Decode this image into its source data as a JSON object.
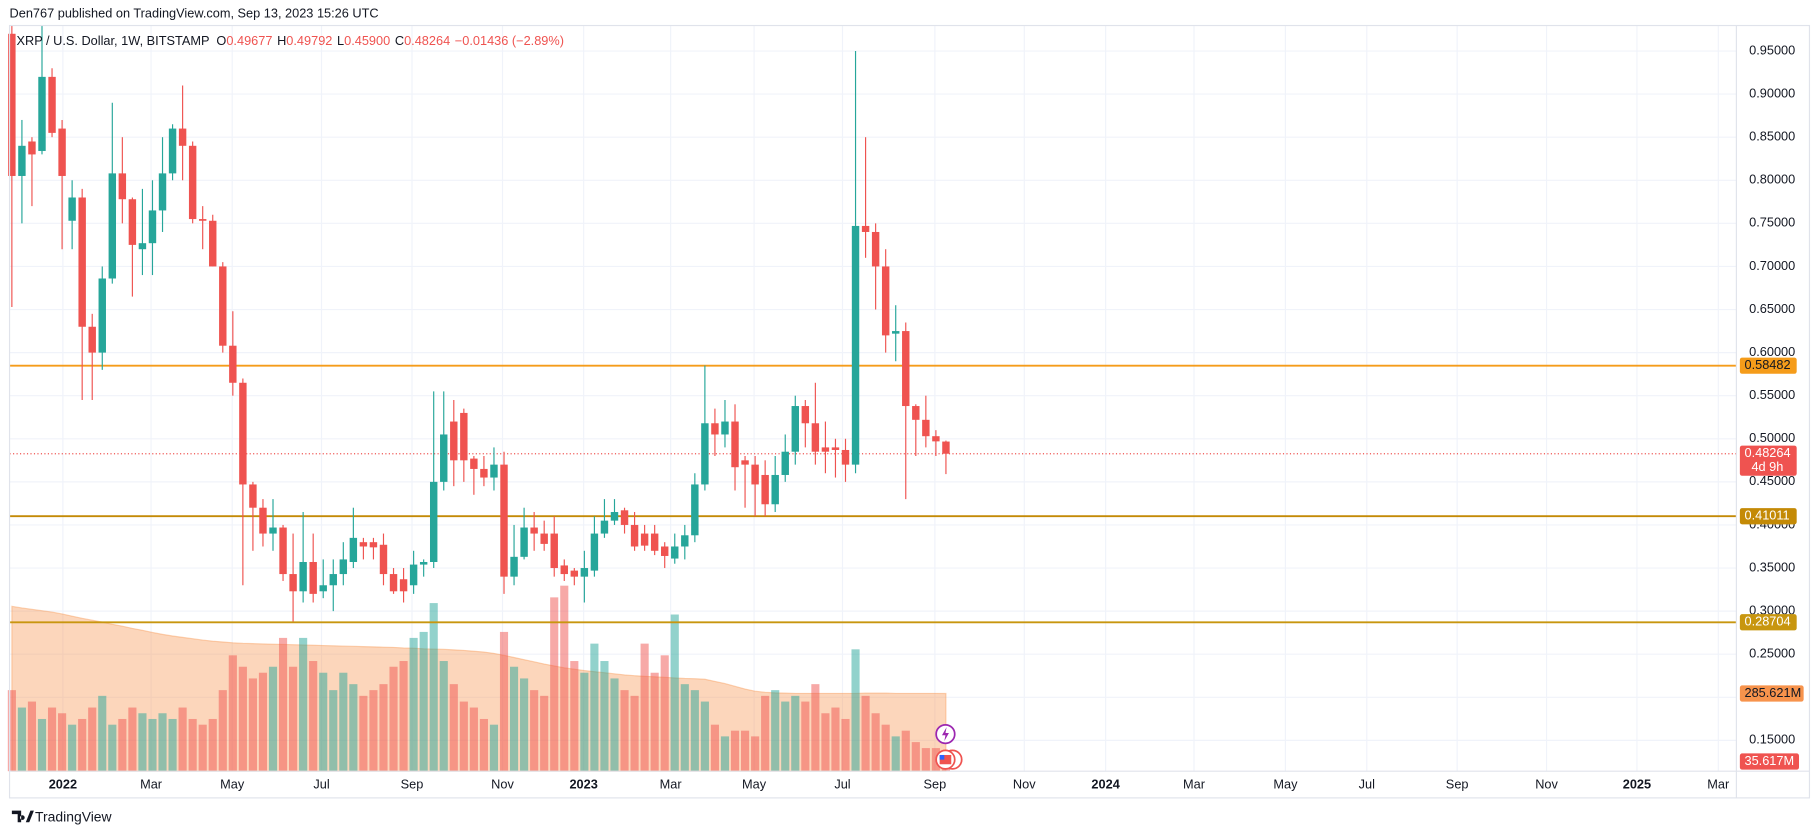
{
  "chart_data": {
    "type": "candlestick",
    "publisher_line": "Den767 published on TradingView.com, Sep 13, 2023 15:26 UTC",
    "title": "XRP / U.S. Dollar, 1W, BITSTAMP",
    "legend": [
      {
        "key": "O",
        "value": "0.49677"
      },
      {
        "key": "H",
        "value": "0.49792"
      },
      {
        "key": "L",
        "value": "0.45900"
      },
      {
        "key": "C",
        "value": "0.48264"
      }
    ],
    "change": "−0.01436 (−2.89%)",
    "brand": "TradingView",
    "up_color": "#26a69a",
    "down_color": "#ef5350",
    "volume_ma_color": "#f7934c",
    "open": [
      0.97,
      0.805,
      0.845,
      0.834,
      0.92,
      0.86,
      0.753,
      0.78,
      0.63,
      0.6,
      0.686,
      0.808,
      0.778,
      0.72,
      0.727,
      0.765,
      0.808,
      0.86,
      0.84,
      0.755,
      0.753,
      0.7,
      0.608,
      0.565,
      0.447,
      0.42,
      0.39,
      0.397,
      0.343,
      0.323,
      0.357,
      0.323,
      0.33,
      0.343,
      0.357,
      0.38,
      0.38,
      0.377,
      0.343,
      0.337,
      0.33,
      0.354,
      0.357,
      0.45,
      0.52,
      0.53,
      0.477,
      0.465,
      0.455,
      0.47,
      0.34,
      0.363,
      0.397,
      0.39,
      0.39,
      0.353,
      0.347,
      0.34,
      0.347,
      0.39,
      0.405,
      0.417,
      0.4,
      0.39,
      0.39,
      0.375,
      0.361,
      0.375,
      0.388,
      0.447,
      0.518,
      0.505,
      0.52,
      0.475,
      0.47,
      0.458,
      0.424,
      0.458,
      0.485,
      0.538,
      0.518,
      0.49,
      0.49,
      0.487,
      0.47,
      0.747,
      0.74,
      0.7,
      0.622,
      0.625,
      0.538,
      0.522,
      0.503,
      0.49677
    ],
    "high": [
      0.98,
      0.87,
      0.85,
      0.98,
      0.93,
      0.87,
      0.8,
      0.79,
      0.645,
      0.7,
      0.89,
      0.85,
      0.78,
      0.79,
      0.8,
      0.85,
      0.865,
      0.91,
      0.845,
      0.77,
      0.76,
      0.705,
      0.648,
      0.57,
      0.45,
      0.43,
      0.43,
      0.4,
      0.39,
      0.415,
      0.39,
      0.36,
      0.36,
      0.38,
      0.42,
      0.385,
      0.385,
      0.39,
      0.35,
      0.35,
      0.37,
      0.36,
      0.555,
      0.555,
      0.545,
      0.535,
      0.48,
      0.48,
      0.49,
      0.485,
      0.4,
      0.42,
      0.415,
      0.405,
      0.41,
      0.36,
      0.35,
      0.37,
      0.41,
      0.43,
      0.43,
      0.42,
      0.415,
      0.4,
      0.4,
      0.38,
      0.39,
      0.4,
      0.46,
      0.585,
      0.535,
      0.545,
      0.54,
      0.48,
      0.48,
      0.475,
      0.48,
      0.505,
      0.55,
      0.545,
      0.565,
      0.52,
      0.5,
      0.5,
      0.95,
      0.85,
      0.75,
      0.72,
      0.655,
      0.635,
      0.54,
      0.55,
      0.51,
      0.49792
    ],
    "low": [
      0.653,
      0.75,
      0.77,
      0.83,
      0.85,
      0.72,
      0.72,
      0.545,
      0.545,
      0.58,
      0.68,
      0.75,
      0.665,
      0.69,
      0.69,
      0.74,
      0.8,
      0.8,
      0.75,
      0.72,
      0.7,
      0.6,
      0.55,
      0.33,
      0.37,
      0.375,
      0.37,
      0.335,
      0.288,
      0.31,
      0.31,
      0.315,
      0.3,
      0.33,
      0.35,
      0.36,
      0.36,
      0.33,
      0.32,
      0.31,
      0.32,
      0.34,
      0.35,
      0.44,
      0.445,
      0.45,
      0.435,
      0.445,
      0.44,
      0.32,
      0.33,
      0.36,
      0.37,
      0.37,
      0.34,
      0.335,
      0.33,
      0.31,
      0.34,
      0.385,
      0.4,
      0.39,
      0.37,
      0.37,
      0.365,
      0.35,
      0.355,
      0.36,
      0.38,
      0.44,
      0.48,
      0.49,
      0.44,
      0.42,
      0.41,
      0.41,
      0.415,
      0.45,
      0.47,
      0.49,
      0.47,
      0.46,
      0.455,
      0.45,
      0.46,
      0.71,
      0.65,
      0.6,
      0.59,
      0.43,
      0.48,
      0.49,
      0.48,
      0.459
    ],
    "close": [
      0.805,
      0.84,
      0.83,
      0.92,
      0.855,
      0.805,
      0.78,
      0.63,
      0.6,
      0.686,
      0.808,
      0.778,
      0.725,
      0.727,
      0.765,
      0.808,
      0.86,
      0.84,
      0.755,
      0.753,
      0.7,
      0.608,
      0.565,
      0.447,
      0.42,
      0.39,
      0.397,
      0.343,
      0.323,
      0.357,
      0.32,
      0.33,
      0.343,
      0.36,
      0.385,
      0.375,
      0.374,
      0.343,
      0.323,
      0.323,
      0.354,
      0.357,
      0.45,
      0.505,
      0.475,
      0.475,
      0.465,
      0.455,
      0.47,
      0.34,
      0.363,
      0.397,
      0.39,
      0.378,
      0.35,
      0.343,
      0.34,
      0.35,
      0.39,
      0.405,
      0.415,
      0.4,
      0.375,
      0.376,
      0.37,
      0.364,
      0.375,
      0.388,
      0.447,
      0.518,
      0.505,
      0.52,
      0.467,
      0.47,
      0.447,
      0.424,
      0.458,
      0.485,
      0.538,
      0.518,
      0.485,
      0.485,
      0.487,
      0.47,
      0.747,
      0.74,
      0.7,
      0.62,
      0.625,
      0.538,
      0.522,
      0.503,
      0.497,
      0.48264
    ],
    "volume": [
      298,
      234,
      256,
      192,
      234,
      213,
      171,
      192,
      234,
      277,
      171,
      192,
      234,
      213,
      192,
      213,
      192,
      234,
      192,
      171,
      192,
      298,
      426,
      384,
      341,
      362,
      384,
      490,
      384,
      490,
      405,
      362,
      298,
      362,
      320,
      277,
      298,
      320,
      384,
      405,
      490,
      512,
      618,
      405,
      320,
      256,
      234,
      192,
      171,
      512,
      384,
      341,
      298,
      277,
      639,
      682,
      405,
      362,
      469,
      405,
      341,
      298,
      277,
      469,
      362,
      426,
      576,
      320,
      298,
      256,
      171,
      128,
      149,
      149,
      128,
      277,
      298,
      256,
      277,
      256,
      320,
      213,
      234,
      192,
      448,
      277,
      213,
      171,
      128,
      149,
      107,
      85,
      85,
      35.617
    ],
    "volume_ma": [
      606,
      600,
      595,
      590,
      585,
      578,
      570,
      562,
      555,
      548,
      540,
      533,
      525,
      518,
      510,
      503,
      497,
      492,
      487,
      482,
      478,
      475,
      472,
      470,
      469,
      468,
      467,
      466,
      465,
      464,
      463,
      462,
      461,
      460,
      459,
      458,
      457,
      456,
      455,
      453,
      452,
      450,
      449,
      448,
      446,
      444,
      441,
      438,
      433,
      426,
      418,
      410,
      402,
      394,
      387,
      380,
      375,
      370,
      366,
      362,
      358,
      354,
      351,
      349,
      347,
      345,
      343,
      341,
      340,
      338,
      330,
      322,
      312,
      302,
      294,
      290,
      288,
      287,
      286,
      286,
      286,
      286,
      286,
      286,
      286,
      287,
      287,
      287,
      286,
      286,
      286,
      286,
      286,
      285.621
    ],
    "volume_last_label": "35.617M",
    "volume_ma_last_label": "285.621M",
    "volume_lim": [
      0,
      2741
    ],
    "countdown": "4d 9h",
    "levels": [
      {
        "value": 0.58482,
        "color": "#f59c1a",
        "text_color": "#131722"
      },
      {
        "value": 0.41011,
        "color": "#c48a06",
        "text_color": "#ffffff"
      },
      {
        "value": 0.28704,
        "color": "#c8960f",
        "text_color": "#ffffff"
      }
    ],
    "ylim": [
      0.1142,
      0.9796
    ],
    "yticks": [
      {
        "value": 0.15,
        "label": "0.15000"
      },
      {
        "value": 0.2,
        "label": "0.20000"
      },
      {
        "value": 0.25,
        "label": "0.25000"
      },
      {
        "value": 0.3,
        "label": "0.30000"
      },
      {
        "value": 0.35,
        "label": "0.35000"
      },
      {
        "value": 0.4,
        "label": "0.40000"
      },
      {
        "value": 0.45,
        "label": "0.45000"
      },
      {
        "value": 0.5,
        "label": "0.50000"
      },
      {
        "value": 0.55,
        "label": "0.55000"
      },
      {
        "value": 0.6,
        "label": "0.60000"
      },
      {
        "value": 0.65,
        "label": "0.65000"
      },
      {
        "value": 0.7,
        "label": "0.70000"
      },
      {
        "value": 0.75,
        "label": "0.75000"
      },
      {
        "value": 0.8,
        "label": "0.80000"
      },
      {
        "value": 0.85,
        "label": "0.85000"
      },
      {
        "value": 0.9,
        "label": "0.90000"
      },
      {
        "value": 0.95,
        "label": "0.95000"
      }
    ],
    "xlim": [
      -0.23,
      171.7
    ],
    "xticks": [
      {
        "value": 5.08,
        "label": "2022"
      },
      {
        "value": 13.86,
        "label": "Mar"
      },
      {
        "value": 21.94,
        "label": "May"
      },
      {
        "value": 30.83,
        "label": "Jul"
      },
      {
        "value": 39.84,
        "label": "Sep"
      },
      {
        "value": 48.85,
        "label": "Nov"
      },
      {
        "value": 56.93,
        "label": "2023"
      },
      {
        "value": 65.59,
        "label": "Mar"
      },
      {
        "value": 73.9,
        "label": "May"
      },
      {
        "value": 82.7,
        "label": "Jul"
      },
      {
        "value": 91.9,
        "label": "Sep"
      },
      {
        "value": 100.8,
        "label": "Nov"
      },
      {
        "value": 108.9,
        "label": "2024"
      },
      {
        "value": 117.7,
        "label": "Mar"
      },
      {
        "value": 126.8,
        "label": "May"
      },
      {
        "value": 134.9,
        "label": "Jul"
      },
      {
        "value": 143.9,
        "label": "Sep"
      },
      {
        "value": 152.8,
        "label": "Nov"
      },
      {
        "value": 161.8,
        "label": "2025"
      },
      {
        "value": 169.9,
        "label": "Mar"
      }
    ],
    "grid": true
  }
}
